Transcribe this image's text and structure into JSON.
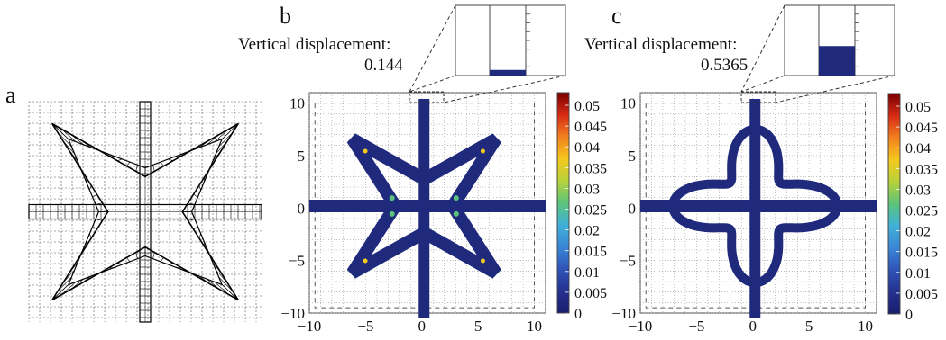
{
  "panels": [
    {
      "label": "a"
    },
    {
      "label": "b",
      "disp_label": "Vertical displacement:",
      "disp_value": "0.144",
      "inset_fill": 0.08,
      "star_style": "sharp"
    },
    {
      "label": "c",
      "disp_label": "Vertical displacement:",
      "disp_value": "0.5365",
      "inset_fill": 0.42,
      "star_style": "rounded"
    }
  ],
  "axes": {
    "x_ticks": [
      "−10",
      "−5",
      "0",
      "5",
      "10"
    ],
    "y_ticks": [
      "10",
      "5",
      "0",
      "−5",
      "−10"
    ]
  },
  "colorbar": {
    "ticks": [
      "0.05",
      "0.045",
      "0.04",
      "0.035",
      "0.03",
      "0.025",
      "0.02",
      "0.015",
      "0.01",
      "0.005",
      "0"
    ],
    "colors": [
      "#7a0000",
      "#d62a14",
      "#f2801e",
      "#f4c81e",
      "#b8d23a",
      "#5cc47a",
      "#3fb0d8",
      "#3a86d6",
      "#2f54b8",
      "#24318f",
      "#1a1f6e"
    ]
  },
  "colors": {
    "mesh": "#1f2a7d",
    "grid": "#9a9a9a"
  }
}
